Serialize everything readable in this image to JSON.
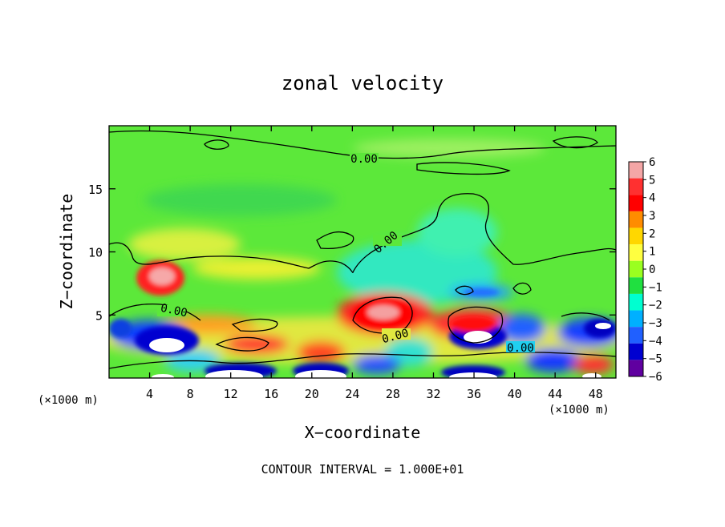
{
  "chart_data": {
    "type": "heatmap",
    "title": "zonal velocity",
    "xlabel": "X−coordinate",
    "ylabel": "Z−coordinate",
    "x_unit_left": "(×1000 m)",
    "x_unit_right": "(×1000 m)",
    "xlim": [
      0,
      50
    ],
    "ylim": [
      0,
      20
    ],
    "x_ticks": [
      4,
      8,
      12,
      16,
      20,
      24,
      28,
      32,
      36,
      40,
      44,
      48
    ],
    "y_ticks": [
      5,
      10,
      15
    ],
    "colorbar": {
      "levels": [
        6,
        5,
        4,
        3,
        2,
        1,
        0,
        -1,
        -2,
        -3,
        -4,
        -5,
        -6
      ],
      "tick_labels": [
        "6",
        "5",
        "4",
        "3",
        "2",
        "1",
        "0",
        "−1",
        "−2",
        "−3",
        "−4",
        "−5",
        "−6"
      ],
      "colors": [
        "#f4a6a6",
        "#ff3030",
        "#ff0000",
        "#ff8c00",
        "#ffd700",
        "#ffff40",
        "#9aff20",
        "#20e040",
        "#00ffd0",
        "#00b0ff",
        "#2060ff",
        "#0000d0",
        "#6000a0"
      ]
    },
    "contour_label": "0.00",
    "footnote": "CONTOUR INTERVAL = 1.000E+01",
    "features": [
      {
        "x": 5.5,
        "z": 8.0,
        "value": 6
      },
      {
        "x": 5.5,
        "z": 2.5,
        "value": -6
      },
      {
        "x": 14,
        "z": 3.0,
        "value": 4
      },
      {
        "x": 27,
        "z": 4.8,
        "value": 6
      },
      {
        "x": 36,
        "z": 3.2,
        "value": -6
      },
      {
        "x": 48,
        "z": 4.0,
        "value": -6
      },
      {
        "x": 19,
        "z": 0.5,
        "value": -6
      },
      {
        "x": 36,
        "z": 6.5,
        "value": -4
      },
      {
        "x": 43,
        "z": 2.5,
        "value": -5
      },
      {
        "x": 2,
        "z": 3.5,
        "value": -5
      }
    ]
  }
}
